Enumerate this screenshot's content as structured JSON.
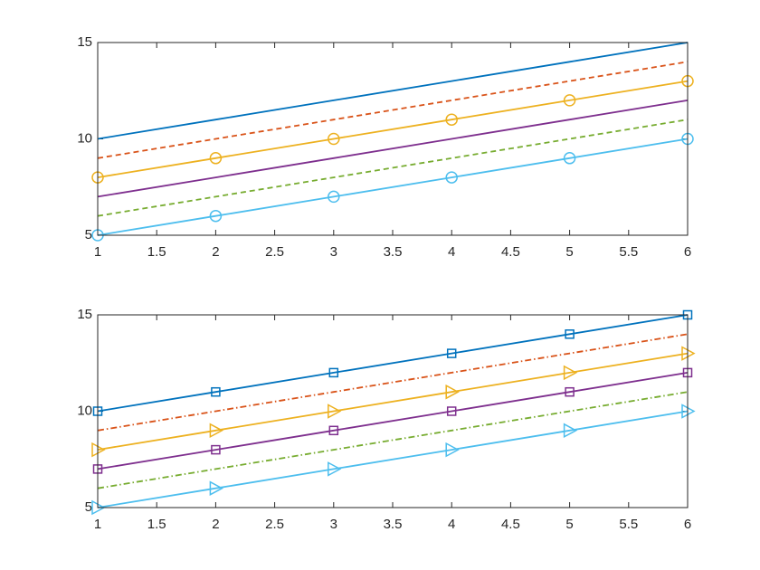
{
  "chart_data": [
    {
      "type": "line",
      "x": [
        1,
        2,
        3,
        4,
        5,
        6
      ],
      "xlim": [
        1,
        6
      ],
      "ylim": [
        5,
        15
      ],
      "xticks": [
        1,
        1.5,
        2,
        2.5,
        3,
        3.5,
        4,
        4.5,
        5,
        5.5,
        6
      ],
      "yticks": [
        5,
        10,
        15
      ],
      "series": [
        {
          "color": "#0072BD",
          "linestyle": "solid",
          "marker": "none",
          "values": [
            10,
            11,
            12,
            13,
            14,
            15
          ]
        },
        {
          "color": "#D95319",
          "linestyle": "dashed",
          "marker": "none",
          "values": [
            9,
            10,
            11,
            12,
            13,
            14
          ]
        },
        {
          "color": "#EDB120",
          "linestyle": "solid",
          "marker": "circle",
          "values": [
            8,
            9,
            10,
            11,
            12,
            13
          ]
        },
        {
          "color": "#7E2F8E",
          "linestyle": "solid",
          "marker": "none",
          "values": [
            7,
            8,
            9,
            10,
            11,
            12
          ]
        },
        {
          "color": "#77AC30",
          "linestyle": "dashed",
          "marker": "none",
          "values": [
            6,
            7,
            8,
            9,
            10,
            11
          ]
        },
        {
          "color": "#4DBEEE",
          "linestyle": "solid",
          "marker": "circle",
          "values": [
            5,
            6,
            7,
            8,
            9,
            10
          ]
        }
      ]
    },
    {
      "type": "line",
      "x": [
        1,
        2,
        3,
        4,
        5,
        6
      ],
      "xlim": [
        1,
        6
      ],
      "ylim": [
        5,
        15
      ],
      "xticks": [
        1,
        1.5,
        2,
        2.5,
        3,
        3.5,
        4,
        4.5,
        5,
        5.5,
        6
      ],
      "yticks": [
        5,
        10,
        15
      ],
      "series": [
        {
          "color": "#0072BD",
          "linestyle": "solid",
          "marker": "square",
          "values": [
            10,
            11,
            12,
            13,
            14,
            15
          ]
        },
        {
          "color": "#D95319",
          "linestyle": "dashdot",
          "marker": "none",
          "values": [
            9,
            10,
            11,
            12,
            13,
            14
          ]
        },
        {
          "color": "#EDB120",
          "linestyle": "solid",
          "marker": "triangle-right",
          "values": [
            8,
            9,
            10,
            11,
            12,
            13
          ]
        },
        {
          "color": "#7E2F8E",
          "linestyle": "solid",
          "marker": "square",
          "values": [
            7,
            8,
            9,
            10,
            11,
            12
          ]
        },
        {
          "color": "#77AC30",
          "linestyle": "dashdot",
          "marker": "none",
          "values": [
            6,
            7,
            8,
            9,
            10,
            11
          ]
        },
        {
          "color": "#4DBEEE",
          "linestyle": "solid",
          "marker": "triangle-right",
          "values": [
            5,
            6,
            7,
            8,
            9,
            10
          ]
        }
      ]
    }
  ]
}
